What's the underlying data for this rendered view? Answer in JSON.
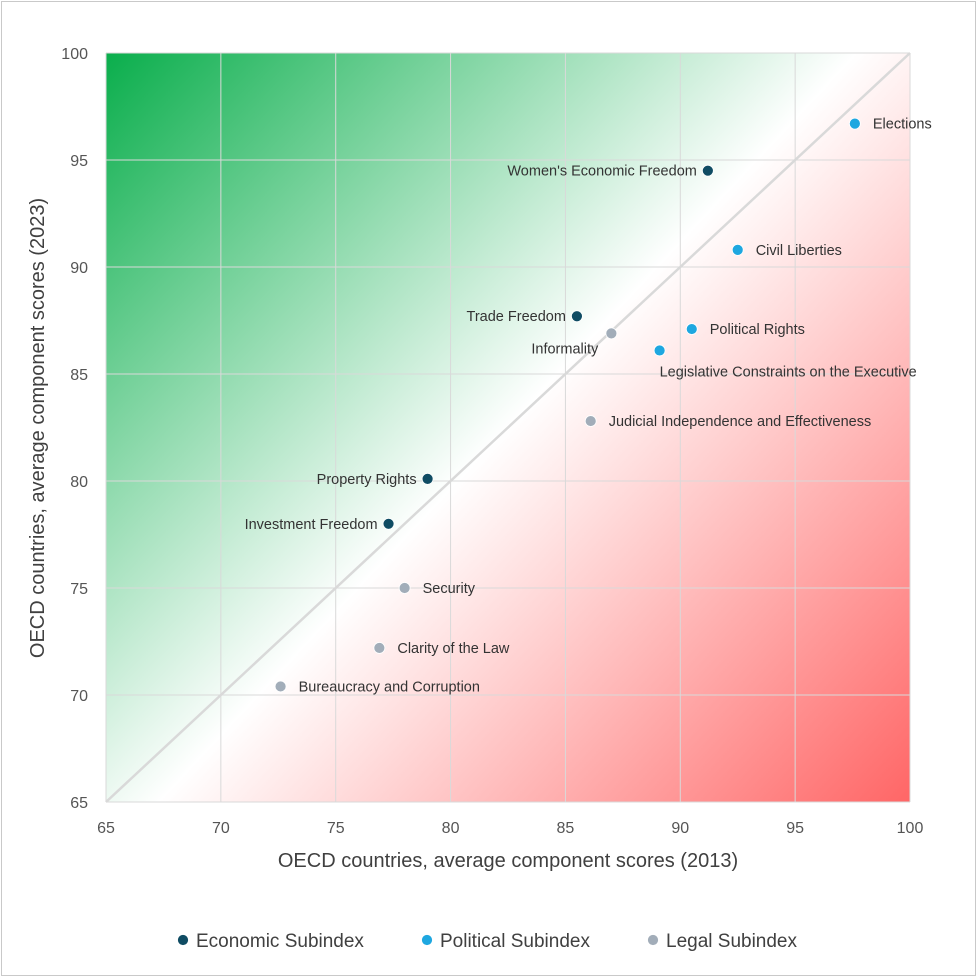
{
  "chart_data": {
    "type": "scatter",
    "title": "",
    "xlabel": "OECD countries, average component scores (2013)",
    "ylabel": "OECD countries, average component scores (2023)",
    "xlim": [
      65,
      100
    ],
    "ylim": [
      65,
      100
    ],
    "xticks": [
      65,
      70,
      75,
      80,
      85,
      90,
      95,
      100
    ],
    "yticks": [
      65,
      70,
      75,
      80,
      85,
      90,
      95,
      100
    ],
    "grid": true,
    "diagonal": "y = x reference line",
    "background": "green gradient above diagonal (improved), red gradient below diagonal (declined)",
    "legend_position": "bottom",
    "series": [
      {
        "name": "Economic Subindex",
        "color": "#0f4c63",
        "points": [
          {
            "label": "Women's Economic Freedom",
            "x": 91.2,
            "y": 94.5,
            "label_side": "left"
          },
          {
            "label": "Trade Freedom",
            "x": 85.5,
            "y": 87.7,
            "label_side": "left"
          },
          {
            "label": "Property Rights",
            "x": 79.0,
            "y": 80.1,
            "label_side": "left"
          },
          {
            "label": "Investment Freedom",
            "x": 77.3,
            "y": 78.0,
            "label_side": "left"
          }
        ]
      },
      {
        "name": "Political Subindex",
        "color": "#1ea7e0",
        "points": [
          {
            "label": "Elections",
            "x": 97.6,
            "y": 96.7,
            "label_side": "right"
          },
          {
            "label": "Civil Liberties",
            "x": 92.5,
            "y": 90.8,
            "label_side": "right"
          },
          {
            "label": "Political Rights",
            "x": 90.5,
            "y": 87.1,
            "label_side": "right"
          },
          {
            "label": "Legislative Constraints on the Executive",
            "x": 89.1,
            "y": 86.1,
            "label_side": "below-right"
          }
        ]
      },
      {
        "name": "Legal Subindex",
        "color": "#a2adb9",
        "points": [
          {
            "label": "Informality",
            "x": 87.0,
            "y": 86.9,
            "label_side": "below-left"
          },
          {
            "label": "Judicial Independence and Effectiveness",
            "x": 86.1,
            "y": 82.8,
            "label_side": "right"
          },
          {
            "label": "Security",
            "x": 78.0,
            "y": 75.0,
            "label_side": "right"
          },
          {
            "label": "Clarity of the Law",
            "x": 76.9,
            "y": 72.2,
            "label_side": "right"
          },
          {
            "label": "Bureaucracy and Corruption",
            "x": 72.6,
            "y": 70.4,
            "label_side": "right"
          }
        ]
      }
    ]
  }
}
